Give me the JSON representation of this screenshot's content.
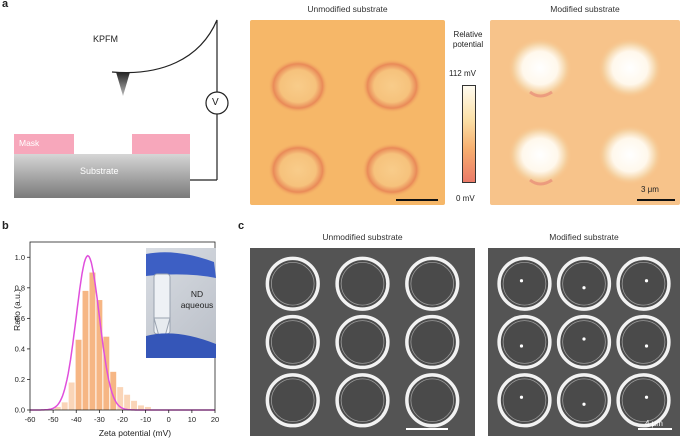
{
  "panels": {
    "a": {
      "letter": "a",
      "kpfm_label": "KPFM",
      "voltage_symbol": "V",
      "mask_label": "Mask",
      "substrate_label": "Substrate",
      "left_title": "Unmodified substrate",
      "right_title": "Modified substrate",
      "colorbar_title_line1": "Relative",
      "colorbar_title_line2": "potential",
      "colorbar_max": "112 mV",
      "colorbar_min": "0 mV",
      "scale_label": "3 μm",
      "colors": {
        "afm_base": "#f6b768",
        "afm_ring": "#e98a58",
        "mask": "#f7a7bb",
        "substrate": "#bdbdbd"
      }
    },
    "b": {
      "letter": "b",
      "inset_text_line1": "ND",
      "inset_text_line2": "aqueous"
    },
    "c": {
      "letter": "c",
      "left_title": "Unmodified substrate",
      "right_title": "Modified substrate",
      "scale_label": "4 μm"
    }
  },
  "chart_data": {
    "type": "bar",
    "xlabel": "Zeta potential (mV)",
    "ylabel": "Ratio (a.u.)",
    "xlim": [
      -60,
      20
    ],
    "ylim": [
      0,
      1.1
    ],
    "xticks": [
      "-60",
      "-50",
      "-40",
      "-30",
      "-20",
      "-10",
      "0",
      "10",
      "20"
    ],
    "yticks": [
      "0.0",
      "0.2",
      "0.4",
      "0.6",
      "0.8",
      "1.0"
    ],
    "bin_width": 3,
    "x": [
      -48,
      -45,
      -42,
      -39,
      -36,
      -33,
      -30,
      -27,
      -24,
      -21,
      -18,
      -15,
      -12,
      -9
    ],
    "values": [
      0.02,
      0.05,
      0.18,
      0.46,
      0.78,
      0.9,
      0.72,
      0.48,
      0.25,
      0.15,
      0.1,
      0.06,
      0.03,
      0.02
    ],
    "fit_curve": {
      "type": "gaussian",
      "center": -35,
      "sigma": 5,
      "amplitude": 1.01,
      "color": "#e04fdc"
    },
    "bar_color": "#f6b27d"
  }
}
